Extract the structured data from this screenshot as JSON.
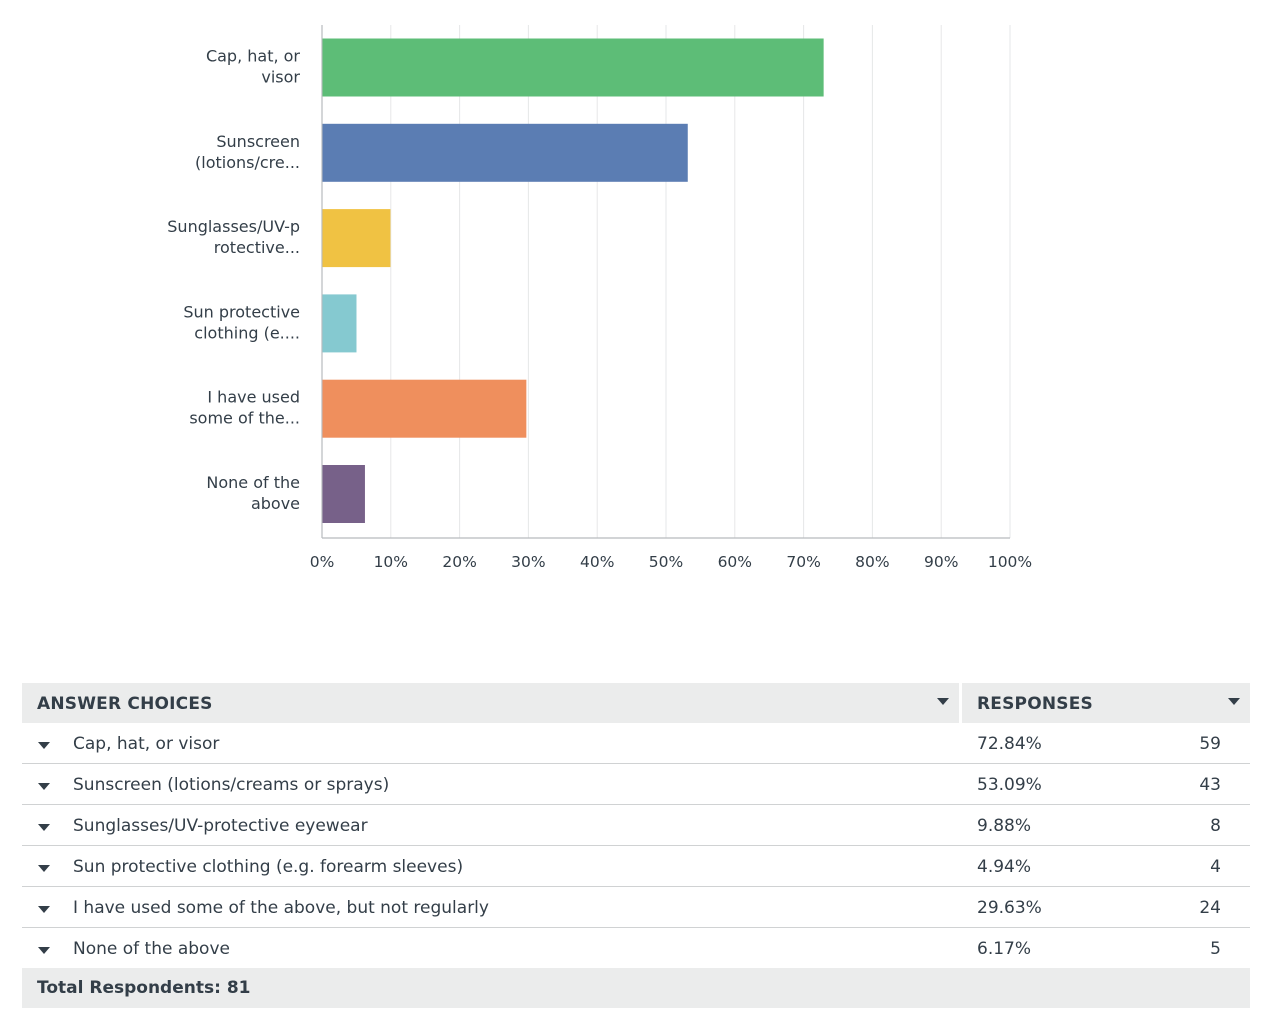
{
  "chart_data": {
    "type": "bar",
    "orientation": "horizontal",
    "categories": [
      "Cap, hat, or visor",
      "Sunscreen (lotions/cre...",
      "Sunglasses/UV-protective...",
      "Sun protective clothing (e....",
      "I have used some of the...",
      "None of the above"
    ],
    "category_lines": [
      [
        "Cap, hat, or",
        "visor"
      ],
      [
        "Sunscreen",
        "(lotions/cre..."
      ],
      [
        "Sunglasses/UV-p",
        "rotective..."
      ],
      [
        "Sun protective",
        "clothing (e...."
      ],
      [
        "I have used",
        "some of the..."
      ],
      [
        "None of the",
        "above"
      ]
    ],
    "values": [
      72.84,
      53.09,
      9.88,
      4.94,
      29.63,
      6.17
    ],
    "colors": [
      "#5dbd77",
      "#5b7db3",
      "#f0c243",
      "#85c9d0",
      "#ef8f5d",
      "#776189"
    ],
    "xlim": [
      0,
      100
    ],
    "xticks": [
      "0%",
      "10%",
      "20%",
      "30%",
      "40%",
      "50%",
      "60%",
      "70%",
      "80%",
      "90%",
      "100%"
    ],
    "grid": true,
    "title": "",
    "xlabel": "",
    "ylabel": ""
  },
  "table": {
    "header_answers": "ANSWER CHOICES",
    "header_responses": "RESPONSES",
    "rows": [
      {
        "label": "Cap, hat, or visor",
        "pct": "72.84%",
        "count": "59"
      },
      {
        "label": "Sunscreen (lotions/creams or sprays)",
        "pct": "53.09%",
        "count": "43"
      },
      {
        "label": "Sunglasses/UV-protective eyewear",
        "pct": "9.88%",
        "count": "8"
      },
      {
        "label": "Sun protective clothing (e.g. forearm sleeves)",
        "pct": "4.94%",
        "count": "4"
      },
      {
        "label": "I have used some of the above, but not regularly",
        "pct": "29.63%",
        "count": "24"
      },
      {
        "label": "None of the above",
        "pct": "6.17%",
        "count": "5"
      }
    ],
    "total_label": "Total Respondents: 81"
  }
}
